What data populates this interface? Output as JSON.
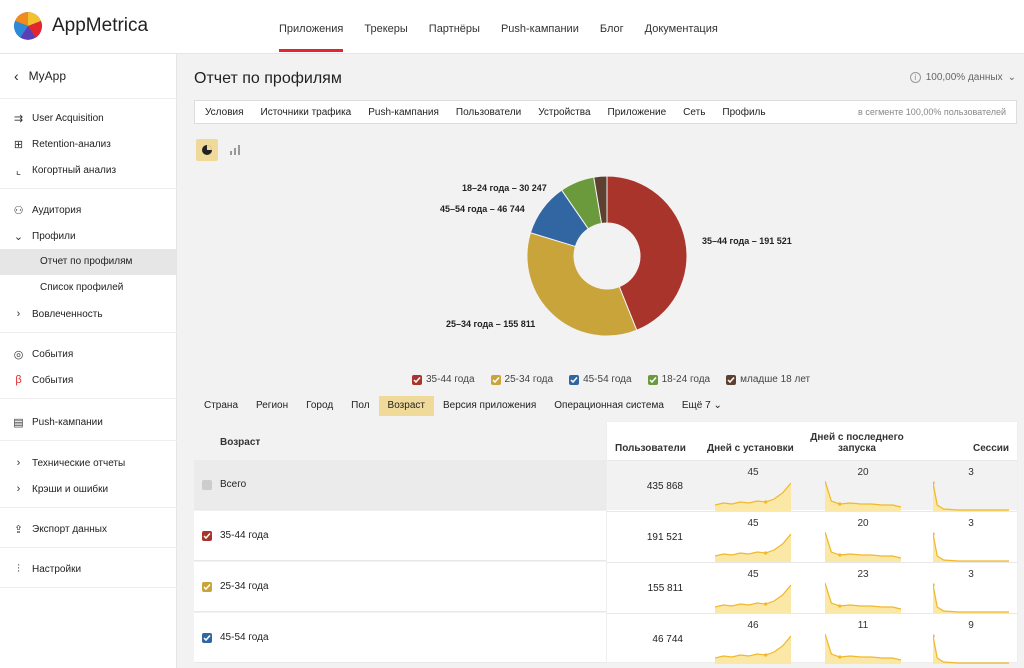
{
  "brand": {
    "name": "AppMetrica"
  },
  "topnav": [
    "Приложения",
    "Трекеры",
    "Партнёры",
    "Push-кампании",
    "Блог",
    "Документация"
  ],
  "sidebar": {
    "app_name": "MyApp",
    "items": [
      {
        "label": "User Acquisition",
        "icon": "acquisition-icon"
      },
      {
        "label": "Retention-анализ",
        "icon": "retention-grid-icon"
      },
      {
        "label": "Когортный анализ",
        "icon": "cohort-chart-icon"
      },
      {
        "label": "Аудитория",
        "icon": "audience-icon"
      },
      {
        "label": "Профили",
        "icon": "chevron-down-icon"
      },
      {
        "label": "Отчет по профилям",
        "icon": ""
      },
      {
        "label": "Список профилей",
        "icon": ""
      },
      {
        "label": "Вовлеченность",
        "icon": "chevron-right-icon"
      },
      {
        "label": "События",
        "icon": "target-icon"
      },
      {
        "label": "События",
        "icon": "beta-icon"
      },
      {
        "label": "Push-кампании",
        "icon": "message-icon"
      },
      {
        "label": "Технические отчеты",
        "icon": "chevron-right-icon"
      },
      {
        "label": "Крэши и ошибки",
        "icon": "chevron-right-icon"
      },
      {
        "label": "Экспорт данных",
        "icon": "export-icon"
      },
      {
        "label": "Настройки",
        "icon": "settings-sliders-icon"
      }
    ]
  },
  "page": {
    "title": "Отчет по профилям",
    "data_note": "100,00% данных"
  },
  "filters": [
    "Условия",
    "Источники трафика",
    "Push-кампания",
    "Пользователи",
    "Устройства",
    "Приложение",
    "Сеть",
    "Профиль"
  ],
  "segment_note": "в сегменте 100,00% пользователей",
  "chart_data": {
    "type": "pie",
    "categories": [
      "35–44 года",
      "25–34 года",
      "45–54 года",
      "18–24 года",
      "младше 18 лет"
    ],
    "values": [
      191521,
      155811,
      46744,
      30247,
      11545
    ],
    "labels": [
      "35–44 года – 191 521",
      "25–34 года – 155 811",
      "45–54 года – 46 744",
      "18–24 года – 30 247"
    ],
    "colors": [
      "#a8342b",
      "#c9a43a",
      "#3266a3",
      "#6a9a3c",
      "#5e4030"
    ]
  },
  "legend": [
    "35-44 года",
    "25-34 года",
    "45-54 года",
    "18-24 года",
    "младше 18 лет"
  ],
  "dim_tabs": [
    "Страна",
    "Регион",
    "Город",
    "Пол",
    "Возраст",
    "Версия приложения",
    "Операционная система",
    "Ещё 7"
  ],
  "table": {
    "age_header": "Возраст",
    "headers": {
      "users": "Пользователи",
      "days_install": "Дней с установки",
      "days_last": "Дней с последнего запуска",
      "sessions": "Сессии"
    },
    "rows": [
      {
        "label": "Всего",
        "users": "435 868",
        "days_install": "45",
        "days_last": "20",
        "sessions": "3",
        "color": "#bbbbbb"
      },
      {
        "label": "35-44 года",
        "users": "191 521",
        "days_install": "45",
        "days_last": "20",
        "sessions": "3",
        "color": "#a8342b"
      },
      {
        "label": "25-34 года",
        "users": "155 811",
        "days_install": "45",
        "days_last": "23",
        "sessions": "3",
        "color": "#c9a43a"
      },
      {
        "label": "45-54 года",
        "users": "46 744",
        "days_install": "46",
        "days_last": "11",
        "sessions": "9",
        "color": "#3266a3"
      }
    ]
  }
}
